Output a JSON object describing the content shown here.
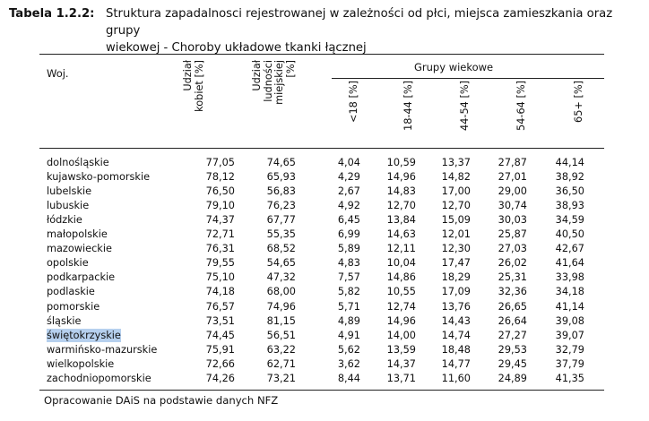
{
  "caption": {
    "label": "Tabela 1.2.2:",
    "text_line1": "Struktura zapadalnosci rejestrowanej w zależności od płci, miejsca zamieszkania oraz grupy",
    "text_line2": "wiekowej - Choroby układowe tkanki łącznej"
  },
  "header": {
    "woj": "Woj.",
    "kobiet_line1": "Udział",
    "kobiet_line2": "kobiet [%]",
    "miejskiej_line1": "Udział",
    "miejskiej_line2": "ludności",
    "miejskiej_line3": "miejskiej",
    "miejskiej_line4": "[%]",
    "group_title": "Grupy wiekowe",
    "age_groups": [
      "<18 [%]",
      "18-44 [%]",
      "44-54 [%]",
      "54-64 [%]",
      "65+ [%]"
    ]
  },
  "highlight_row": 12,
  "rows": [
    [
      "dolnośląskie",
      "77,05",
      "74,65",
      "4,04",
      "10,59",
      "13,37",
      "27,87",
      "44,14"
    ],
    [
      "kujawsko-pomorskie",
      "78,12",
      "65,93",
      "4,29",
      "14,96",
      "14,82",
      "27,01",
      "38,92"
    ],
    [
      "lubelskie",
      "76,50",
      "56,83",
      "2,67",
      "14,83",
      "17,00",
      "29,00",
      "36,50"
    ],
    [
      "lubuskie",
      "79,10",
      "76,23",
      "4,92",
      "12,70",
      "12,70",
      "30,74",
      "38,93"
    ],
    [
      "łódzkie",
      "74,37",
      "67,77",
      "6,45",
      "13,84",
      "15,09",
      "30,03",
      "34,59"
    ],
    [
      "małopolskie",
      "72,71",
      "55,35",
      "6,99",
      "14,63",
      "12,01",
      "25,87",
      "40,50"
    ],
    [
      "mazowieckie",
      "76,31",
      "68,52",
      "5,89",
      "12,11",
      "12,30",
      "27,03",
      "42,67"
    ],
    [
      "opolskie",
      "79,55",
      "54,65",
      "4,83",
      "10,04",
      "17,47",
      "26,02",
      "41,64"
    ],
    [
      "podkarpackie",
      "75,10",
      "47,32",
      "7,57",
      "14,86",
      "18,29",
      "25,31",
      "33,98"
    ],
    [
      "podlaskie",
      "74,18",
      "68,00",
      "5,82",
      "10,55",
      "17,09",
      "32,36",
      "34,18"
    ],
    [
      "pomorskie",
      "76,57",
      "74,96",
      "5,71",
      "12,74",
      "13,76",
      "26,65",
      "41,14"
    ],
    [
      "śląskie",
      "73,51",
      "81,15",
      "4,89",
      "14,96",
      "14,43",
      "26,64",
      "39,08"
    ],
    [
      "świętokrzyskie",
      "74,45",
      "56,51",
      "4,91",
      "14,00",
      "14,74",
      "27,27",
      "39,07"
    ],
    [
      "warmińsko-mazurskie",
      "75,91",
      "63,22",
      "5,62",
      "13,59",
      "18,48",
      "29,53",
      "32,79"
    ],
    [
      "wielkopolskie",
      "72,66",
      "62,71",
      "3,62",
      "14,37",
      "14,77",
      "29,45",
      "37,79"
    ],
    [
      "zachodniopomorskie",
      "74,26",
      "73,21",
      "8,44",
      "13,71",
      "11,60",
      "24,89",
      "41,35"
    ]
  ],
  "footer": "Opracowanie DAiS na podstawie danych NFZ"
}
